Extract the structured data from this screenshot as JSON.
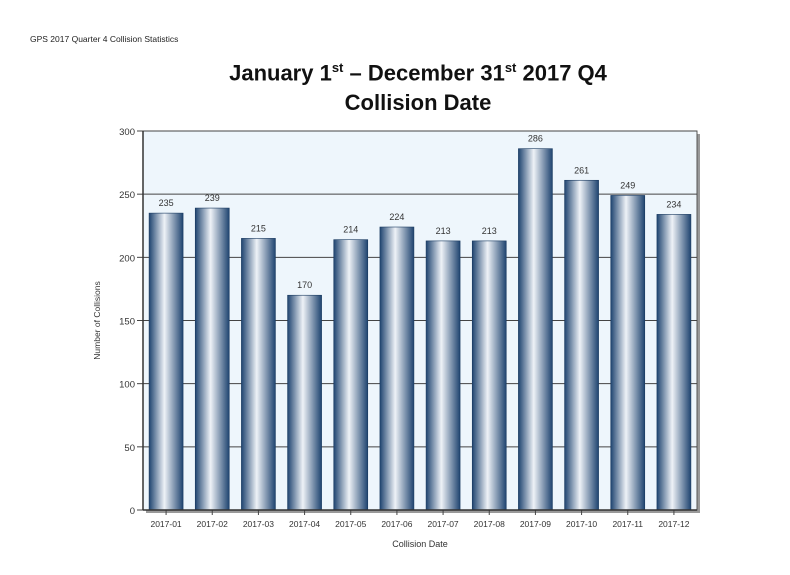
{
  "header": "GPS 2017 Quarter 4 Collision Statistics",
  "title": {
    "line1_a": "January 1",
    "line1_sup1": "st",
    "line1_b": " – December 31",
    "line1_sup2": "st",
    "line1_c": " 2017 Q4",
    "line2": "Collision Date"
  },
  "chart_data": {
    "type": "bar",
    "title": "January 1st – December 31st 2017 Q4 Collision Date",
    "xlabel": "Collision Date",
    "ylabel": "Number of Collisions",
    "categories": [
      "2017-01",
      "2017-02",
      "2017-03",
      "2017-04",
      "2017-05",
      "2017-06",
      "2017-07",
      "2017-08",
      "2017-09",
      "2017-10",
      "2017-11",
      "2017-12"
    ],
    "values": [
      235,
      239,
      215,
      170,
      214,
      224,
      213,
      213,
      286,
      261,
      249,
      234
    ],
    "ylim": [
      0,
      300
    ],
    "yticks": [
      0,
      50,
      100,
      150,
      200,
      250,
      300
    ],
    "grid": true,
    "colors": {
      "bar_dark": "#1f4470",
      "bar_light": "#eef2f7",
      "plot_bg": "#eef6fc"
    }
  }
}
